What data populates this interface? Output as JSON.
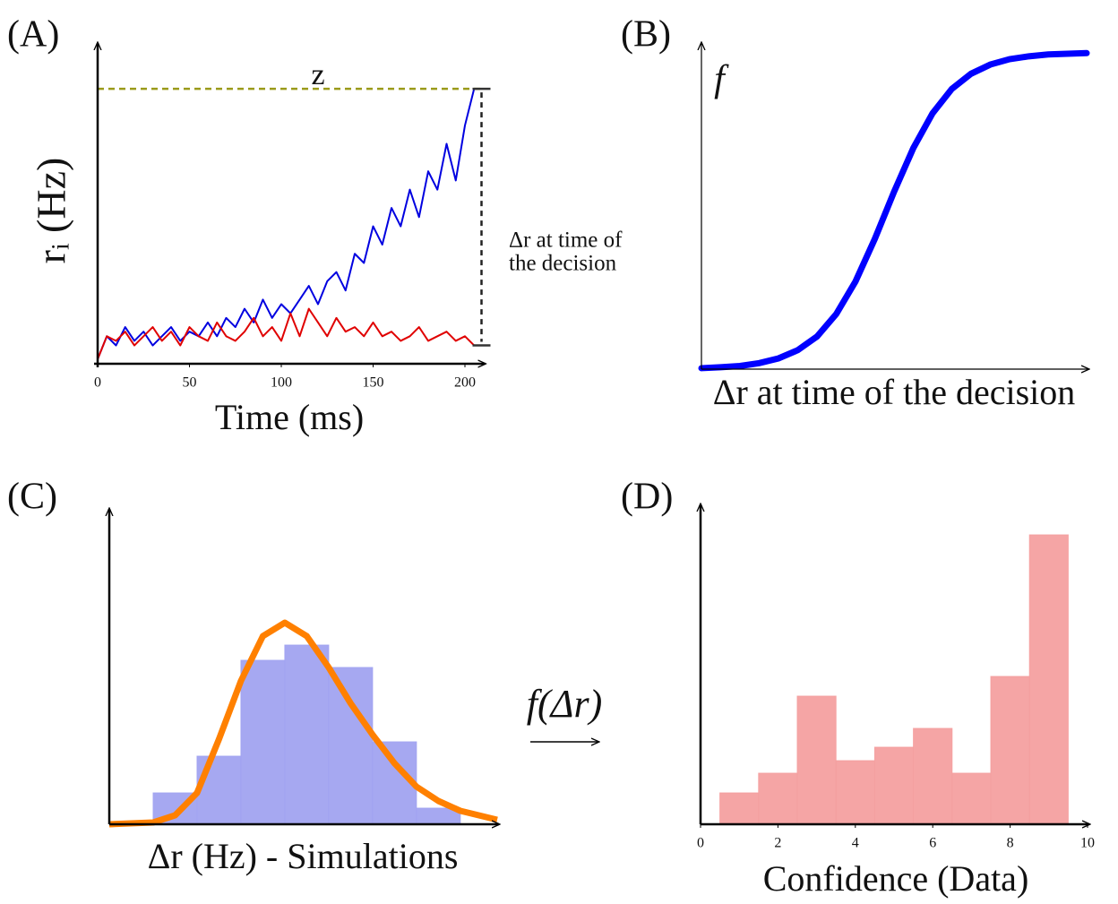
{
  "chart_data": [
    {
      "type": "line",
      "panel_label": "(A)",
      "x_label": "Time (ms)",
      "y_label": "rᵢ (Hz)",
      "x": [
        0,
        5,
        10,
        15,
        20,
        25,
        30,
        35,
        40,
        45,
        50,
        55,
        60,
        65,
        70,
        75,
        80,
        85,
        90,
        95,
        100,
        105,
        110,
        115,
        120,
        125,
        130,
        135,
        140,
        145,
        150,
        155,
        160,
        165,
        170,
        175,
        180,
        185,
        190,
        195,
        200,
        205
      ],
      "series": [
        {
          "color": "#0000e0",
          "values": [
            0.5,
            3,
            2,
            4,
            2.5,
            3.5,
            2,
            3,
            4,
            2.5,
            3.5,
            3,
            4.5,
            3,
            5,
            4,
            6,
            4.5,
            7,
            5,
            6.5,
            5.5,
            7,
            8.5,
            6.5,
            9,
            10,
            8,
            12,
            11,
            15,
            13,
            17,
            15,
            19,
            16,
            21,
            19,
            24,
            20,
            26,
            30
          ]
        },
        {
          "color": "#e00000",
          "values": [
            0.5,
            3,
            2.5,
            3.5,
            2,
            3,
            4,
            2.5,
            3.5,
            2,
            4,
            3,
            2.5,
            4.5,
            3,
            2.5,
            3.5,
            5,
            3,
            4,
            2.5,
            5.5,
            3,
            6,
            4.5,
            3,
            5,
            3.5,
            4,
            3,
            4.5,
            3,
            3.5,
            2.5,
            3,
            4,
            2.5,
            3,
            3.5,
            2.5,
            3,
            2
          ]
        }
      ],
      "threshold": 30,
      "threshold_label": "z",
      "annotation": [
        "Δr at time of",
        "the decision"
      ],
      "xlim": [
        0,
        210
      ],
      "ylim": [
        0,
        35
      ],
      "xticks": [
        0,
        50,
        100,
        150,
        200
      ]
    },
    {
      "type": "curve",
      "panel_label": "(B)",
      "x_label": "Δr at time of the decision",
      "y_label": "f",
      "x": [
        0,
        0.5,
        1,
        1.5,
        2,
        2.5,
        3,
        3.5,
        4,
        4.5,
        5,
        5.5,
        6,
        6.5,
        7,
        7.5,
        8,
        8.5,
        9,
        9.5,
        10
      ],
      "values": [
        0.003,
        0.006,
        0.01,
        0.019,
        0.034,
        0.06,
        0.103,
        0.174,
        0.277,
        0.411,
        0.56,
        0.698,
        0.808,
        0.885,
        0.933,
        0.962,
        0.979,
        0.988,
        0.994,
        0.996,
        0.998
      ],
      "color": "#0000ff",
      "xlim": [
        0,
        10
      ],
      "ylim": [
        0,
        1.03
      ]
    },
    {
      "type": "histogram",
      "panel_label": "(C)",
      "x_label": "Δr (Hz) - Simulations",
      "bins": [
        1,
        2,
        3,
        4,
        5,
        6,
        7,
        8
      ],
      "values": [
        35,
        76,
        183,
        200,
        175,
        92,
        18
      ],
      "color": "#a6a9f8",
      "fit": {
        "x": [
          0,
          1,
          1.5,
          2,
          2.5,
          3,
          3.5,
          4,
          4.5,
          5,
          5.5,
          6,
          6.5,
          7,
          7.5,
          8,
          8.84
        ],
        "values": [
          0,
          2,
          10,
          35,
          95,
          160,
          210,
          225,
          210,
          175,
          135,
          100,
          68,
          42,
          26,
          15,
          5
        ],
        "color": "#ff8000"
      },
      "arrow_label": "f(Δr)",
      "xlim": [
        0,
        8.84
      ],
      "ylim": [
        0,
        352
      ]
    },
    {
      "type": "histogram",
      "panel_label": "(D)",
      "x_label": "Confidence (Data)",
      "bins": [
        0.5,
        1.5,
        2.5,
        3.5,
        4.5,
        5.5,
        6.5,
        7.5,
        8.5,
        9.5
      ],
      "values": [
        35,
        57,
        143,
        71,
        86,
        107,
        57,
        165,
        323
      ],
      "color": "#fca5a5",
      "xlim": [
        0,
        10
      ],
      "ylim": [
        0,
        357
      ],
      "xticks": [
        0,
        2,
        4,
        6,
        8,
        10
      ]
    }
  ]
}
